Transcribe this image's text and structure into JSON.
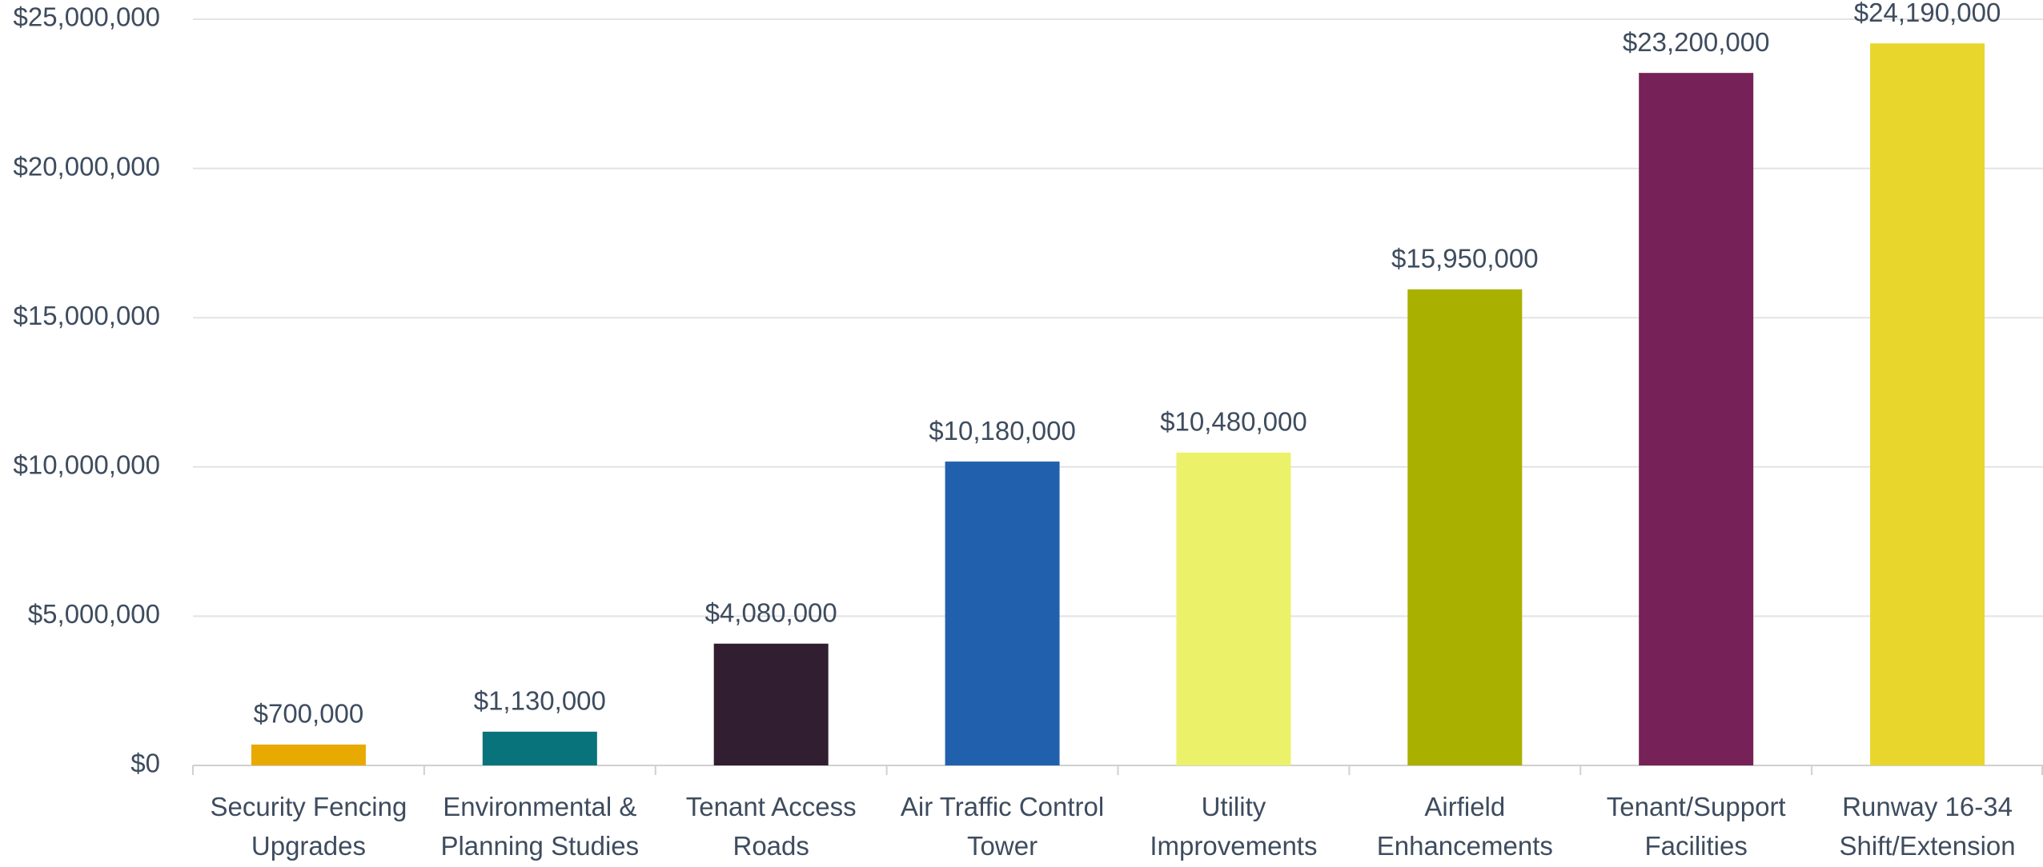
{
  "chart_data": {
    "type": "bar",
    "categories": [
      "Security Fencing Upgrades",
      "Environmental & Planning Studies",
      "Tenant Access Roads",
      "Air Traffic Control Tower",
      "Utility Improvements",
      "Airfield Enhancements",
      "Tenant/Support Facilities",
      "Runway 16-34 Shift/Extension"
    ],
    "values": [
      700000,
      1130000,
      4080000,
      10180000,
      10480000,
      15950000,
      23200000,
      24190000
    ],
    "value_labels": [
      "$700,000",
      "$1,130,000",
      "$4,080,000",
      "$10,180,000",
      "$10,480,000",
      "$15,950,000",
      "$23,200,000",
      "$24,190,000"
    ],
    "colors": [
      "#e8a900",
      "#08737a",
      "#321e31",
      "#2160ad",
      "#ebf26a",
      "#aab000",
      "#762157",
      "#e8d62c"
    ],
    "ylim": [
      0,
      25000000
    ],
    "yticks": [
      {
        "value": 0,
        "label": "$0"
      },
      {
        "value": 5000000,
        "label": "$5,000,000"
      },
      {
        "value": 10000000,
        "label": "$10,000,000"
      },
      {
        "value": 15000000,
        "label": "$15,000,000"
      },
      {
        "value": 20000000,
        "label": "$20,000,000"
      },
      {
        "value": 25000000,
        "label": "$25,000,000"
      }
    ],
    "grid": true
  }
}
